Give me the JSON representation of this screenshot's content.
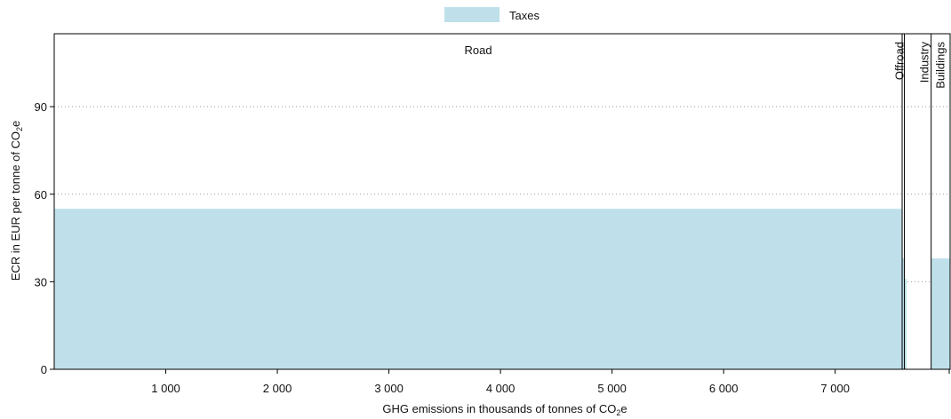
{
  "chart_data": {
    "type": "bar",
    "legend": [
      {
        "name": "Taxes",
        "color": "#bfe0ea"
      }
    ],
    "legend_position": "top-center",
    "xlabel": {
      "pre": "GHG emissions in thousands of tonnes of CO",
      "sub": "2",
      "post": "e"
    },
    "ylabel": {
      "pre": "ECR in EUR per tonne of CO",
      "sub": "2",
      "post": "e"
    },
    "xlim": [
      0,
      8030
    ],
    "ylim": [
      0,
      115
    ],
    "x_ticks": [
      {
        "value": 1000,
        "label": "1 000"
      },
      {
        "value": 2000,
        "label": "2 000"
      },
      {
        "value": 3000,
        "label": "3 000"
      },
      {
        "value": 4000,
        "label": "4 000"
      },
      {
        "value": 5000,
        "label": "5 000"
      },
      {
        "value": 6000,
        "label": "6 000"
      },
      {
        "value": 7000,
        "label": "7 000"
      }
    ],
    "y_ticks": [
      {
        "value": 0,
        "label": "0"
      },
      {
        "value": 30,
        "label": "30"
      },
      {
        "value": 60,
        "label": "60"
      },
      {
        "value": 90,
        "label": "90"
      }
    ],
    "grid": "horizontal-dotted",
    "bars": [
      {
        "x0": 0,
        "x1": 7600,
        "value": 55
      },
      {
        "x0": 7600,
        "x1": 7620,
        "value": 38
      },
      {
        "x0": 7620,
        "x1": 7640,
        "value": 31
      },
      {
        "x0": 7860,
        "x1": 8030,
        "value": 38
      }
    ],
    "sectors": [
      {
        "label": "Road",
        "x0": 0,
        "x1": 7600,
        "orientation": "horizontal"
      },
      {
        "label": "Offroad",
        "x0": 7600,
        "x1": 7620,
        "orientation": "vertical"
      },
      {
        "label": "Industry",
        "x0": 7620,
        "x1": 7860,
        "orientation": "vertical"
      },
      {
        "label": "Buildings",
        "x0": 7860,
        "x1": 8030,
        "orientation": "vertical"
      }
    ]
  }
}
